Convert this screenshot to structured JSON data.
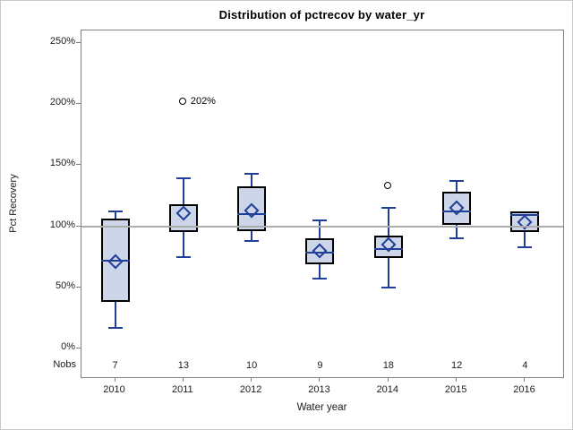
{
  "page": {
    "background": "#ffffff",
    "border_color": "#c9c9c9"
  },
  "chart_data": {
    "type": "box",
    "title": "Distribution of pctrecov by water_yr",
    "xlabel": "Water year",
    "ylabel": "Pct Recovery",
    "yticks_pct": [
      0,
      50,
      100,
      150,
      200,
      250
    ],
    "ytick_suffix": "%",
    "ylim": [
      0,
      260
    ],
    "grid": false,
    "refline_pct": 100,
    "nobs_row_label": "Nobs",
    "categories": [
      "2010",
      "2011",
      "2012",
      "2013",
      "2014",
      "2015",
      "2016"
    ],
    "nobs": [
      7,
      13,
      10,
      9,
      18,
      12,
      4
    ],
    "boxes": [
      {
        "category": "2010",
        "n": 7,
        "whisker_low": 17,
        "q1": 38,
        "median": 72,
        "mean": 71,
        "q3": 106,
        "whisker_high": 112,
        "outliers": []
      },
      {
        "category": "2011",
        "n": 13,
        "whisker_low": 75,
        "q1": 95,
        "median": 100,
        "mean": 111,
        "q3": 118,
        "whisker_high": 139,
        "outliers": [
          {
            "value": 202,
            "label": "202%"
          }
        ]
      },
      {
        "category": "2012",
        "n": 10,
        "whisker_low": 88,
        "q1": 96,
        "median": 110,
        "mean": 113,
        "q3": 133,
        "whisker_high": 143,
        "outliers": []
      },
      {
        "category": "2013",
        "n": 9,
        "whisker_low": 57,
        "q1": 69,
        "median": 78,
        "mean": 80,
        "q3": 90,
        "whisker_high": 105,
        "outliers": []
      },
      {
        "category": "2014",
        "n": 18,
        "whisker_low": 50,
        "q1": 74,
        "median": 81,
        "mean": 85,
        "q3": 92,
        "whisker_high": 115,
        "outliers": [
          {
            "value": 133,
            "label": ""
          }
        ]
      },
      {
        "category": "2015",
        "n": 12,
        "whisker_low": 90,
        "q1": 101,
        "median": 112,
        "mean": 115,
        "q3": 128,
        "whisker_high": 137,
        "outliers": []
      },
      {
        "category": "2016",
        "n": 4,
        "whisker_low": 83,
        "q1": 95,
        "median": 109,
        "mean": 103,
        "q3": 112,
        "whisker_high": null,
        "outliers": []
      }
    ],
    "colors": {
      "box_fill": "#ccd6e8",
      "box_border": "#000000",
      "whisker": "#1f3f99",
      "median": "#1f3f99",
      "mean_marker": "#1f3f99",
      "refline": "#adadad",
      "axis": "#828282",
      "text": "#1a1a1a",
      "outlier": "#000000"
    }
  }
}
